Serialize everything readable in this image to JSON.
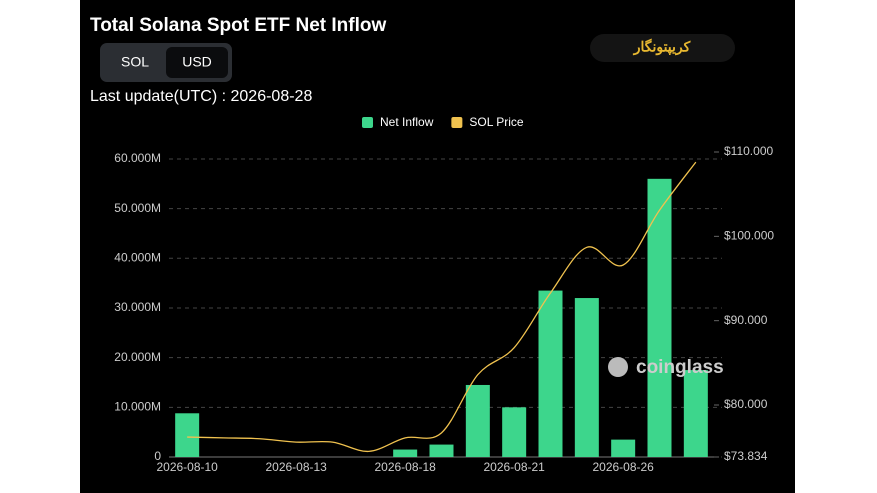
{
  "header": {
    "title": "Total Solana Spot ETF Net Inflow",
    "toggle": [
      "SOL",
      "USD"
    ],
    "update": "Last update(UTC) : 2026-08-28",
    "logo": "کریپتونگار",
    "watermark": "coinglass"
  },
  "chart_data": {
    "type": "bar",
    "categories": [
      "2026-08-10",
      null,
      null,
      "2026-08-13",
      null,
      null,
      "2026-08-18",
      null,
      null,
      "2026-08-21",
      null,
      null,
      "2026-08-26",
      null,
      null
    ],
    "series": [
      {
        "name": "Net Inflow",
        "color": "#3dd68c",
        "values": [
          8800000,
          0,
          0,
          0,
          0,
          0,
          1500000,
          2500000,
          14500000,
          10000000,
          33500000,
          32000000,
          3500000,
          56000000,
          17500000
        ]
      },
      {
        "name": "SOL Price",
        "color": "#f0c24f",
        "axis": "y2",
        "type": "line",
        "values": [
          76.2,
          76.1,
          76,
          75.6,
          75.6,
          74.5,
          76.1,
          76.7,
          83.6,
          86.8,
          93.3,
          98.7,
          96.6,
          103.1,
          108.8
        ]
      }
    ],
    "ylim": [
      0,
      61400000
    ],
    "yticks": [
      0,
      {
        "value": 10000000,
        "label": "10.000M"
      },
      {
        "value": 20000000,
        "label": "20.000M"
      },
      {
        "value": 30000000,
        "label": "30.000M"
      },
      {
        "value": 40000000,
        "label": "40.000M"
      },
      {
        "value": 50000000,
        "label": "50.000M"
      },
      {
        "value": 60000000,
        "label": "60.000M"
      }
    ],
    "y2lim": [
      73.834,
      110
    ],
    "y2ticks": [
      {
        "value": 73.834,
        "label": "$73.834"
      },
      {
        "value": 80,
        "label": "$80.000"
      },
      {
        "value": 90,
        "label": "$90.000"
      },
      {
        "value": 100,
        "label": "$100.000"
      },
      {
        "value": 110,
        "label": "$110.000"
      }
    ],
    "grid": true,
    "legend": "top"
  }
}
